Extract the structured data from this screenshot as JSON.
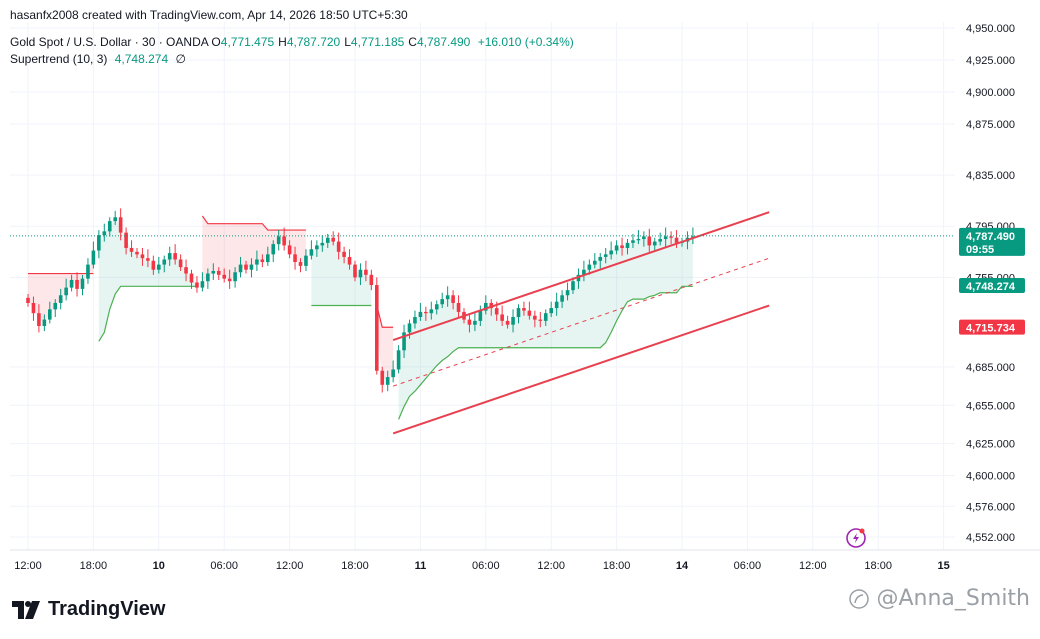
{
  "header": {
    "credit": "hasanfx2008 created with TradingView.com, Apr 14, 2026 18:50 UTC+5:30",
    "symbol": "Gold Spot / U.S. Dollar · 30 · OANDA",
    "ohlc": [
      {
        "key": "O",
        "value": "4,771.475"
      },
      {
        "key": "H",
        "value": "4,787.720"
      },
      {
        "key": "L",
        "value": "4,771.185"
      },
      {
        "key": "C",
        "value": "4,787.490"
      }
    ],
    "change": "+16.010 (+0.34%)",
    "indicator": {
      "label": "Supertrend (10, 3)",
      "value": "4,748.274",
      "value2": "∅"
    }
  },
  "brand": {
    "name": "TradingView"
  },
  "watermark": {
    "text": "@Anna_Smith"
  },
  "colors": {
    "up": "#089981",
    "down": "#f23645",
    "channel": "#e8404f",
    "bg": "#ffffff",
    "grid": "#f0f3fa"
  },
  "chart_data": {
    "type": "candlestick",
    "y_axis": {
      "ticks": [
        {
          "label": "4,950.000",
          "value": 4950
        },
        {
          "label": "4,925.000",
          "value": 4925
        },
        {
          "label": "4,900.000",
          "value": 4900
        },
        {
          "label": "4,875.000",
          "value": 4875
        },
        {
          "label": "4,835.000",
          "value": 4835
        },
        {
          "label": "4,795.000",
          "value": 4795
        },
        {
          "label": "4,755.000",
          "value": 4755
        },
        {
          "label": "4,685.000",
          "value": 4685
        },
        {
          "label": "4,655.000",
          "value": 4655
        },
        {
          "label": "4,625.000",
          "value": 4625
        },
        {
          "label": "4,600.000",
          "value": 4600
        },
        {
          "label": "4,576.000",
          "value": 4576
        },
        {
          "label": "4,552.000",
          "value": 4552
        }
      ],
      "range": [
        4545,
        4956
      ]
    },
    "x_axis": {
      "ticks": [
        {
          "label": "12:00",
          "bar": 0
        },
        {
          "label": "18:00",
          "bar": 12
        },
        {
          "label": "10",
          "bar": 24
        },
        {
          "label": "06:00",
          "bar": 36
        },
        {
          "label": "12:00",
          "bar": 48
        },
        {
          "label": "18:00",
          "bar": 60
        },
        {
          "label": "11",
          "bar": 72
        },
        {
          "label": "06:00",
          "bar": 84
        },
        {
          "label": "12:00",
          "bar": 96
        },
        {
          "label": "18:00",
          "bar": 108
        },
        {
          "label": "14",
          "bar": 120
        },
        {
          "label": "06:00",
          "bar": 132
        },
        {
          "label": "12:00",
          "bar": 144
        },
        {
          "label": "18:00",
          "bar": 156
        },
        {
          "label": "15",
          "bar": 168
        }
      ]
    },
    "price_labels": [
      {
        "value": 4787.49,
        "text": "4,787.490",
        "subtext": "09:55",
        "color": "#089981"
      },
      {
        "value": 4748.274,
        "text": "4,748.274",
        "color": "#089981"
      },
      {
        "value": 4715.734,
        "text": "4,715.734",
        "color": "#f23645"
      }
    ],
    "last_price": 4787.49,
    "closes": [
      4735,
      4727,
      4717,
      4722,
      4730,
      4735,
      4741,
      4747,
      4753,
      4746,
      4754,
      4765,
      4776,
      4788,
      4791,
      4799,
      4802,
      4790,
      4778,
      4775,
      4773,
      4770,
      4768,
      4761,
      4765,
      4769,
      4774,
      4769,
      4763,
      4758,
      4751,
      4747,
      4752,
      4758,
      4760,
      4757,
      4754,
      4752,
      4759,
      4765,
      4761,
      4765,
      4769,
      4767,
      4773,
      4781,
      4787,
      4780,
      4773,
      4767,
      4764,
      4772,
      4777,
      4780,
      4782,
      4786,
      4783,
      4775,
      4771,
      4765,
      4755,
      4761,
      4757,
      4749,
      4682,
      4671,
      4677,
      4683,
      4698,
      4712,
      4719,
      4724,
      4728,
      4727,
      4730,
      4734,
      4738,
      4741,
      4735,
      4728,
      4722,
      4718,
      4721,
      4729,
      4735,
      4731,
      4726,
      4721,
      4718,
      4724,
      4731,
      4729,
      4725,
      4722,
      4721,
      4727,
      4731,
      4736,
      4741,
      4745,
      4752,
      4757,
      4761,
      4765,
      4768,
      4771,
      4773,
      4776,
      4780,
      4778,
      4782,
      4784,
      4785,
      4787,
      4780,
      4783,
      4785,
      4787,
      4786,
      4782,
      4783,
      4786,
      4787
    ],
    "supertrend": [
      {
        "from": 0,
        "to": 12,
        "side": "down",
        "values": [
          4758,
          4758,
          4758,
          4758,
          4758,
          4758,
          4758,
          4758,
          4758,
          4758,
          4758,
          4758,
          4758
        ]
      },
      {
        "from": 13,
        "to": 31,
        "side": "up",
        "values": [
          4705,
          4712,
          4730,
          4742,
          4748,
          4748,
          4748,
          4748,
          4748,
          4748,
          4748,
          4748,
          4748,
          4748,
          4748,
          4748,
          4748,
          4748,
          4748
        ]
      },
      {
        "from": 32,
        "to": 51,
        "side": "down",
        "values": [
          4803,
          4797,
          4797,
          4797,
          4797,
          4797,
          4797,
          4797,
          4797,
          4797,
          4797,
          4797,
          4792,
          4792,
          4792,
          4792,
          4792,
          4792,
          4792,
          4792
        ]
      },
      {
        "from": 52,
        "to": 63,
        "side": "up",
        "values": [
          4733,
          4733,
          4733,
          4733,
          4733,
          4733,
          4733,
          4733,
          4733,
          4733,
          4733,
          4733
        ]
      },
      {
        "from": 64,
        "to": 67,
        "side": "down",
        "values": [
          4733,
          4716,
          4716,
          4716
        ]
      },
      {
        "from": 68,
        "to": 122,
        "side": "up",
        "values": [
          4644,
          4654,
          4662,
          4666,
          4671,
          4676,
          4681,
          4686,
          4690,
          4693,
          4697,
          4700,
          4700,
          4700,
          4700,
          4700,
          4700,
          4700,
          4700,
          4700,
          4700,
          4700,
          4700,
          4700,
          4700,
          4700,
          4700,
          4700,
          4700,
          4700,
          4700,
          4700,
          4700,
          4700,
          4700,
          4700,
          4700,
          4700,
          4704,
          4712,
          4721,
          4729,
          4736,
          4738,
          4738,
          4738,
          4740,
          4741,
          4743,
          4743,
          4743,
          4743,
          4748,
          4748,
          4748
        ]
      }
    ],
    "channel": {
      "upper": [
        [
          67,
          4706
        ],
        [
          136,
          4806
        ]
      ],
      "lower": [
        [
          67,
          4633
        ],
        [
          136,
          4733
        ]
      ],
      "mid": [
        [
          67,
          4670
        ],
        [
          136,
          4770
        ]
      ]
    }
  }
}
